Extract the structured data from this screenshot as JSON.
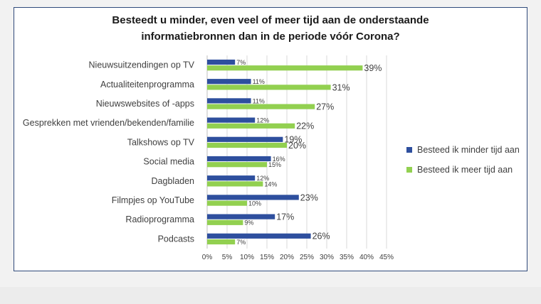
{
  "chart_data": {
    "type": "bar",
    "orientation": "horizontal",
    "title": "Besteedt u minder, even veel of meer tijd aan de onderstaande informatiebronnen dan in de periode vóór Corona?",
    "title_lines": [
      "Besteedt u minder, even veel of meer tijd aan de onderstaande",
      "informatiebronnen dan in de periode vóór Corona?"
    ],
    "categories": [
      "Nieuwsuitzendingen op TV",
      "Actualiteitenprogramma",
      "Nieuwswebsites of -apps",
      "Gesprekken met vrienden/bekenden/familie",
      "Talkshows op TV",
      "Social media",
      "Dagbladen",
      "Filmpjes op YouTube",
      "Radioprogramma",
      "Podcasts"
    ],
    "series": [
      {
        "name": "Besteed ik minder tijd aan",
        "color": "#2e4f9e",
        "values": [
          7,
          11,
          11,
          12,
          19,
          16,
          12,
          23,
          17,
          26
        ]
      },
      {
        "name": "Besteed ik meer tijd aan",
        "color": "#92d050",
        "values": [
          39,
          31,
          27,
          22,
          20,
          15,
          14,
          10,
          9,
          7
        ]
      }
    ],
    "xlim": [
      0,
      45
    ],
    "xticks": [
      "0%",
      "5%",
      "10%",
      "15%",
      "20%",
      "25%",
      "30%",
      "35%",
      "40%",
      "45%"
    ],
    "grid": true,
    "legend_position": "right"
  }
}
